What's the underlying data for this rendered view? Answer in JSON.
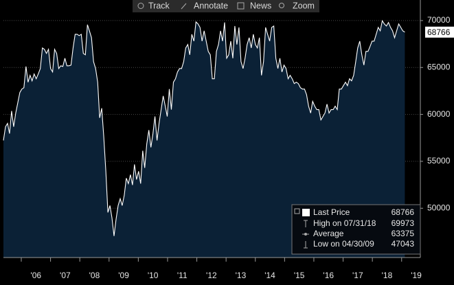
{
  "toolbar": [
    "Track",
    "Annotate",
    "News",
    "Zoom"
  ],
  "chart_data": {
    "type": "area",
    "grid": true,
    "xlim": [
      2005.39,
      2019.64
    ],
    "ylim": [
      44750,
      72190
    ],
    "yticks": [
      50000,
      55000,
      60000,
      65000,
      70000
    ],
    "xticks": [
      {
        "value": 2006,
        "label": "'06"
      },
      {
        "value": 2007,
        "label": "'07"
      },
      {
        "value": 2008,
        "label": "'08"
      },
      {
        "value": 2009,
        "label": "'09"
      },
      {
        "value": 2010,
        "label": "'10"
      },
      {
        "value": 2011,
        "label": "'11"
      },
      {
        "value": 2012,
        "label": "'12"
      },
      {
        "value": 2013,
        "label": "'13"
      },
      {
        "value": 2014,
        "label": "'14"
      },
      {
        "value": 2015,
        "label": "'15"
      },
      {
        "value": 2016,
        "label": "'16"
      },
      {
        "value": 2017,
        "label": "'17"
      },
      {
        "value": 2018,
        "label": "'18"
      },
      {
        "value": 2019,
        "label": "'19"
      }
    ],
    "legend_stats": [
      {
        "label": "High on 07/31/18",
        "value": 69973
      },
      {
        "label": "Average",
        "value": 63375
      },
      {
        "label": "Low on 04/30/09",
        "value": 47043
      }
    ],
    "x": [
      2005.39,
      2005.46,
      2005.53,
      2005.6,
      2005.67,
      2005.74,
      2005.81,
      2005.88,
      2005.95,
      2006.02,
      2006.09,
      2006.16,
      2006.23,
      2006.3,
      2006.37,
      2006.44,
      2006.51,
      2006.58,
      2006.65,
      2006.72,
      2006.79,
      2006.86,
      2006.93,
      2007.0,
      2007.07,
      2007.14,
      2007.21,
      2007.28,
      2007.35,
      2007.42,
      2007.49,
      2007.56,
      2007.63,
      2007.7,
      2007.77,
      2007.84,
      2007.91,
      2007.98,
      2008.05,
      2008.12,
      2008.19,
      2008.26,
      2008.33,
      2008.4,
      2008.47,
      2008.54,
      2008.61,
      2008.68,
      2008.75,
      2008.82,
      2008.89,
      2008.96,
      2009.03,
      2009.1,
      2009.17,
      2009.24,
      2009.31,
      2009.38,
      2009.45,
      2009.52,
      2009.59,
      2009.66,
      2009.73,
      2009.8,
      2009.87,
      2009.94,
      2010.01,
      2010.08,
      2010.15,
      2010.22,
      2010.29,
      2010.36,
      2010.43,
      2010.5,
      2010.57,
      2010.64,
      2010.71,
      2010.78,
      2010.85,
      2010.92,
      2010.99,
      2011.06,
      2011.13,
      2011.2,
      2011.27,
      2011.34,
      2011.41,
      2011.48,
      2011.55,
      2011.62,
      2011.69,
      2011.76,
      2011.83,
      2011.9,
      2011.97,
      2012.04,
      2012.11,
      2012.18,
      2012.25,
      2012.32,
      2012.39,
      2012.46,
      2012.53,
      2012.6,
      2012.67,
      2012.74,
      2012.81,
      2012.88,
      2012.95,
      2013.02,
      2013.09,
      2013.16,
      2013.23,
      2013.3,
      2013.37,
      2013.44,
      2013.51,
      2013.58,
      2013.65,
      2013.72,
      2013.79,
      2013.86,
      2013.93,
      2014.0,
      2014.07,
      2014.14,
      2014.21,
      2014.28,
      2014.35,
      2014.42,
      2014.49,
      2014.56,
      2014.63,
      2014.7,
      2014.77,
      2014.84,
      2014.91,
      2014.98,
      2015.05,
      2015.12,
      2015.19,
      2015.26,
      2015.33,
      2015.4,
      2015.47,
      2015.54,
      2015.61,
      2015.68,
      2015.75,
      2015.82,
      2015.89,
      2015.96,
      2016.03,
      2016.1,
      2016.17,
      2016.24,
      2016.31,
      2016.38,
      2016.45,
      2016.52,
      2016.59,
      2016.66,
      2016.73,
      2016.8,
      2016.87,
      2016.94,
      2017.01,
      2017.08,
      2017.15,
      2017.22,
      2017.29,
      2017.36,
      2017.43,
      2017.5,
      2017.57,
      2017.64,
      2017.71,
      2017.78,
      2017.85,
      2017.92,
      2017.99,
      2018.06,
      2018.13,
      2018.2,
      2018.27,
      2018.34,
      2018.41,
      2018.48,
      2018.55,
      2018.62,
      2018.69,
      2018.76,
      2018.83,
      2018.9,
      2018.97,
      2019.04,
      2019.11
    ],
    "series": [
      {
        "name": "Last Price",
        "color": "#ffffff",
        "fill": "#0b2136",
        "values": [
          57225,
          58685,
          59050,
          57955,
          60364,
          58685,
          60145,
          61240,
          62335,
          62700,
          62846,
          65109,
          63430,
          64160,
          63576,
          64306,
          63795,
          64306,
          64890,
          67080,
          66934,
          66496,
          66934,
          64890,
          64525,
          66934,
          66496,
          64890,
          65182,
          65109,
          65985,
          65182,
          65182,
          65255,
          67080,
          68540,
          68540,
          68394,
          68540,
          66496,
          66350,
          69562,
          68905,
          68175,
          65620,
          64890,
          63430,
          59634,
          60656,
          57590,
          53940,
          49560,
          50290,
          48976,
          47043,
          48830,
          50290,
          51020,
          50290,
          51385,
          53210,
          52626,
          53575,
          52480,
          54670,
          53064,
          53940,
          52626,
          56130,
          54305,
          56860,
          58320,
          56495,
          57955,
          59780,
          57225,
          59050,
          60510,
          61970,
          60875,
          59780,
          62700,
          60510,
          63430,
          63795,
          64525,
          64890,
          64890,
          65620,
          67080,
          67445,
          66350,
          68540,
          67810,
          69854,
          69635,
          69270,
          67810,
          68905,
          67810,
          66715,
          66350,
          63795,
          63795,
          66715,
          67445,
          68905,
          67810,
          69800,
          65985,
          66350,
          67810,
          65985,
          69416,
          67445,
          69270,
          65620,
          64890,
          65985,
          67445,
          68175,
          67080,
          68540,
          67445,
          67080,
          68175,
          64160,
          65620,
          69270,
          68540,
          67810,
          69270,
          69416,
          65985,
          64890,
          65985,
          64525,
          65255,
          64890,
          63795,
          64160,
          63795,
          63284,
          63430,
          63284,
          62846,
          62700,
          62700,
          62116,
          60875,
          60145,
          61386,
          60875,
          60510,
          60510,
          59415,
          59780,
          60145,
          61094,
          60145,
          60510,
          60510,
          60875,
          60510,
          62700,
          62700,
          63065,
          63430,
          63065,
          63795,
          63576,
          64160,
          65620,
          67080,
          67810,
          66350,
          65255,
          66715,
          66715,
          67226,
          67810,
          67810,
          68540,
          69270,
          68905,
          69973,
          69635,
          69416,
          69800,
          69270,
          68905,
          68175,
          68905,
          69635,
          69270,
          68905,
          68766
        ]
      }
    ]
  }
}
